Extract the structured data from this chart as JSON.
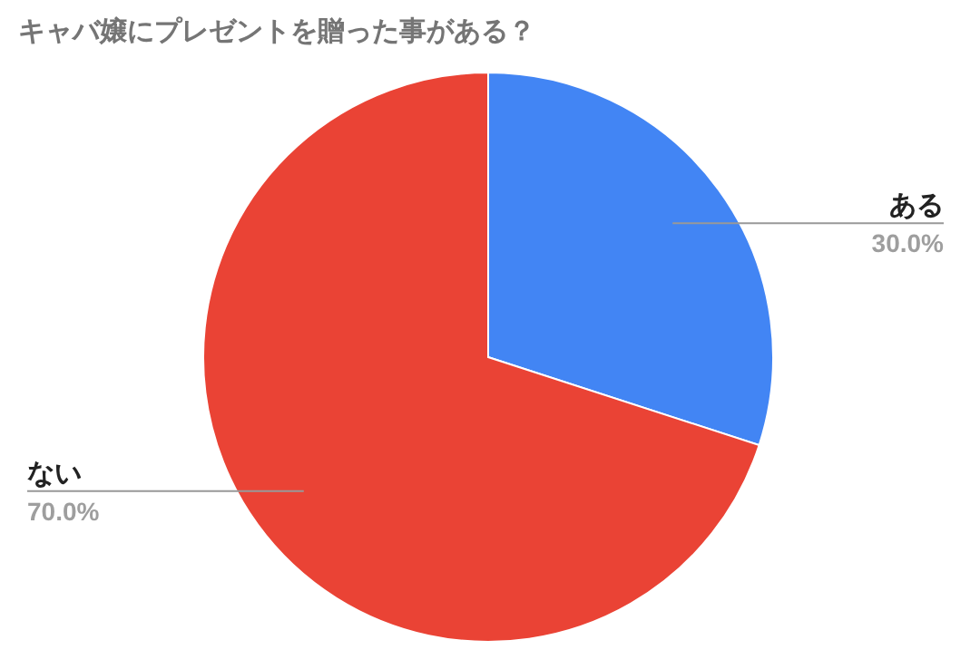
{
  "chart_data": {
    "type": "pie",
    "title": "キャバ嬢にプレゼントを贈った事がある？",
    "categories": [
      "ある",
      "ない"
    ],
    "values": [
      30,
      70
    ],
    "colors": [
      "#4285f4",
      "#ea4335"
    ],
    "value_labels": [
      "30.0%",
      "70.0%"
    ]
  }
}
